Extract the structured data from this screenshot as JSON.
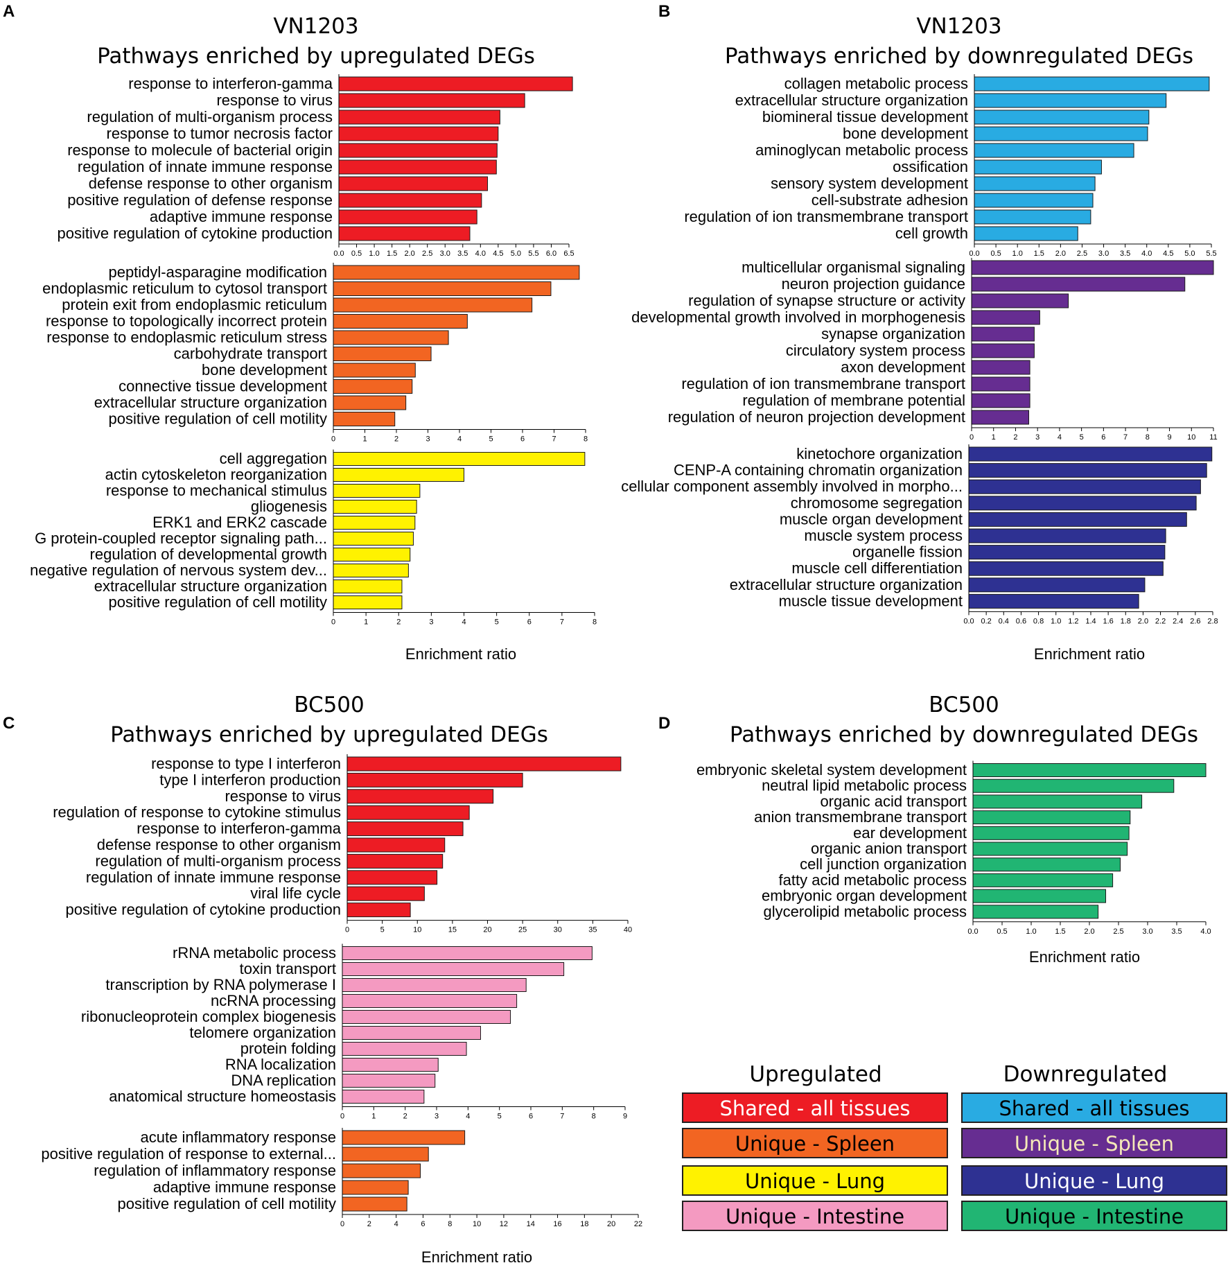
{
  "legend": {
    "up_heading": "Upregulated",
    "down_heading": "Downregulated",
    "up_items": [
      {
        "label": "Shared - all tissues",
        "color": "#ed1c24",
        "text_color": "#ffffff"
      },
      {
        "label": "Unique - Spleen",
        "color": "#f26522",
        "text_color": "#000000"
      },
      {
        "label": "Unique - Lung",
        "color": "#fff200",
        "text_color": "#000000"
      },
      {
        "label": "Unique - Intestine",
        "color": "#f49ac1",
        "text_color": "#000000"
      }
    ],
    "down_items": [
      {
        "label": "Shared - all tissues",
        "color": "#29abe2",
        "text_color": "#000000"
      },
      {
        "label": "Unique - Spleen",
        "color": "#662d91",
        "text_color": "#f5e9b8"
      },
      {
        "label": "Unique - Lung",
        "color": "#2e3192",
        "text_color": "#ffffff"
      },
      {
        "label": "Unique - Intestine",
        "color": "#21b573",
        "text_color": "#000000"
      }
    ]
  },
  "chart_data": [
    {
      "panel": "A",
      "type": "bar",
      "orientation": "horizontal",
      "title_line1": "VN1203",
      "title_line2": "Pathways enriched by upregulated DEGs",
      "xlabel": "Enrichment ratio",
      "subcharts": [
        {
          "color": "#ed1c24",
          "categories": [
            "response to interferon-gamma",
            "response to virus",
            "regulation of multi-organism process",
            "response to tumor necrosis factor",
            "response to molecule of bacterial origin",
            "regulation of innate immune response",
            "defense response to other organism",
            "positive regulation of defense response",
            "adaptive immune response",
            "positive regulation of cytokine production"
          ],
          "values": [
            6.6,
            5.25,
            4.55,
            4.5,
            4.47,
            4.45,
            4.2,
            4.03,
            3.9,
            3.7
          ],
          "ticks": [
            "0.0",
            "0.5",
            "1.0",
            "1.5",
            "2.0",
            "2.5",
            "3.0",
            "3.5",
            "4.0",
            "4.5",
            "5.0",
            "5.5",
            "6.0",
            "6.5"
          ]
        },
        {
          "color": "#f26522",
          "categories": [
            "peptidyl-asparagine modification",
            "endoplasmic reticulum to cytosol transport",
            "protein exit from endoplasmic reticulum",
            "response to topologically incorrect protein",
            "response to endoplasmic reticulum stress",
            "carbohydrate transport",
            "bone development",
            "connective tissue development",
            "extracellular structure organization",
            "positive regulation of cell motility"
          ],
          "values": [
            7.8,
            6.9,
            6.3,
            4.25,
            3.65,
            3.1,
            2.6,
            2.5,
            2.3,
            1.95
          ],
          "ticks": [
            "0",
            "1",
            "2",
            "3",
            "4",
            "5",
            "6",
            "7",
            "8"
          ]
        },
        {
          "color": "#fff200",
          "categories": [
            "cell aggregation",
            "actin cytoskeleton reorganization",
            "response to mechanical stimulus",
            "gliogenesis",
            "ERK1 and ERK2 cascade",
            "G protein-coupled receptor signaling path...",
            "regulation of developmental growth",
            "negative regulation of nervous system dev...",
            "extracellular structure organization",
            "positive regulation of cell motility"
          ],
          "values": [
            7.7,
            4.0,
            2.65,
            2.55,
            2.5,
            2.45,
            2.35,
            2.3,
            2.1,
            2.1
          ],
          "ticks": [
            "0",
            "1",
            "2",
            "3",
            "4",
            "5",
            "6",
            "7",
            "8"
          ]
        }
      ]
    },
    {
      "panel": "B",
      "type": "bar",
      "orientation": "horizontal",
      "title_line1": "VN1203",
      "title_line2": "Pathways enriched by downregulated DEGs",
      "xlabel": "Enrichment ratio",
      "subcharts": [
        {
          "color": "#29abe2",
          "categories": [
            "collagen metabolic process",
            "extracellular structure organization",
            "biomineral tissue development",
            "bone development",
            "aminoglycan metabolic process",
            "ossification",
            "sensory system development",
            "cell-substrate adhesion",
            "regulation of ion transmembrane transport",
            "cell growth"
          ],
          "values": [
            5.45,
            4.45,
            4.05,
            4.02,
            3.7,
            2.95,
            2.8,
            2.75,
            2.7,
            2.4
          ],
          "ticks": [
            "0.0",
            "0.5",
            "1.0",
            "1.5",
            "2.0",
            "2.5",
            "3.0",
            "3.5",
            "4.0",
            "4.5",
            "5.0",
            "5.5"
          ]
        },
        {
          "color": "#662d91",
          "categories": [
            "multicellular organismal signaling",
            "neuron projection guidance",
            "regulation of synapse structure or activity",
            "developmental growth involved in morphogenesis",
            "synapse organization",
            "circulatory system process",
            "axon development",
            "regulation of ion transmembrane transport",
            "regulation of membrane potential",
            "regulation of neuron projection development"
          ],
          "values": [
            11.0,
            9.7,
            4.4,
            3.1,
            2.85,
            2.85,
            2.65,
            2.65,
            2.65,
            2.6
          ],
          "ticks": [
            "0",
            "1",
            "2",
            "3",
            "4",
            "5",
            "6",
            "7",
            "8",
            "9",
            "10",
            "11"
          ]
        },
        {
          "color": "#2e3192",
          "categories": [
            "kinetochore organization",
            "CENP-A containing chromatin organization",
            "cellular component assembly involved in morpho...",
            "chromosome segregation",
            "muscle organ development",
            "muscle system process",
            "organelle fission",
            "muscle cell differentiation",
            "extracellular structure organization",
            "muscle tissue development"
          ],
          "values": [
            2.79,
            2.73,
            2.66,
            2.61,
            2.5,
            2.26,
            2.25,
            2.23,
            2.02,
            1.95
          ],
          "ticks": [
            "0.0",
            "0.2",
            "0.4",
            "0.6",
            "0.8",
            "1.0",
            "1.2",
            "1.4",
            "1.6",
            "1.8",
            "2.0",
            "2.2",
            "2.4",
            "2.6",
            "2.8"
          ]
        }
      ]
    },
    {
      "panel": "C",
      "type": "bar",
      "orientation": "horizontal",
      "title_line1": "BC500",
      "title_line2": "Pathways enriched by upregulated DEGs",
      "xlabel": "Enrichment ratio",
      "subcharts": [
        {
          "color": "#ed1c24",
          "categories": [
            "response to type I interferon",
            "type I interferon production",
            "response to virus",
            "regulation of response to cytokine stimulus",
            "response to interferon-gamma",
            "defense response to other organism",
            "regulation of multi-organism process",
            "regulation of innate immune response",
            "viral life cycle",
            "positive regulation of cytokine production"
          ],
          "values": [
            39,
            25,
            20.8,
            17.4,
            16.5,
            13.9,
            13.6,
            12.8,
            11,
            9
          ],
          "ticks": [
            "0",
            "5",
            "10",
            "15",
            "20",
            "25",
            "30",
            "35",
            "40"
          ]
        },
        {
          "color": "#f49ac1",
          "categories": [
            "rRNA metabolic process",
            "toxin transport",
            "transcription by RNA polymerase I",
            "ncRNA processing",
            "ribonucleoprotein complex biogenesis",
            "telomere organization",
            "protein folding",
            "RNA localization",
            "DNA replication",
            "anatomical structure homeostasis"
          ],
          "values": [
            7.95,
            7.05,
            5.85,
            5.55,
            5.35,
            4.4,
            3.95,
            3.05,
            2.95,
            2.6
          ],
          "ticks": [
            "0",
            "1",
            "2",
            "3",
            "4",
            "5",
            "6",
            "7",
            "8",
            "9"
          ]
        },
        {
          "color": "#f26522",
          "categories": [
            "acute inflammatory response",
            "positive regulation of response to external...",
            "regulation of inflammatory response",
            "adaptive immune response",
            "positive regulation of cell motility"
          ],
          "values": [
            9.1,
            6.4,
            5.8,
            4.9,
            4.8
          ],
          "ticks": [
            "0",
            "2",
            "4",
            "6",
            "8",
            "10",
            "12",
            "14",
            "16",
            "18",
            "20",
            "22"
          ]
        }
      ]
    },
    {
      "panel": "D",
      "type": "bar",
      "orientation": "horizontal",
      "title_line1": "BC500",
      "title_line2": "Pathways enriched by downregulated DEGs",
      "xlabel": "Enrichment ratio",
      "subcharts": [
        {
          "color": "#21b573",
          "categories": [
            "embryonic skeletal system development",
            "neutral lipid metabolic process",
            "organic acid transport",
            "anion transmembrane transport",
            "ear development",
            "organic anion transport",
            "cell junction organization",
            "fatty acid metabolic process",
            "embryonic organ development",
            "glycerolipid metabolic process"
          ],
          "values": [
            4.0,
            3.45,
            2.9,
            2.7,
            2.68,
            2.65,
            2.53,
            2.4,
            2.28,
            2.15
          ],
          "ticks": [
            "0.0",
            "0.5",
            "1.0",
            "1.5",
            "2.0",
            "2.5",
            "3.0",
            "3.5",
            "4.0"
          ]
        }
      ]
    }
  ]
}
